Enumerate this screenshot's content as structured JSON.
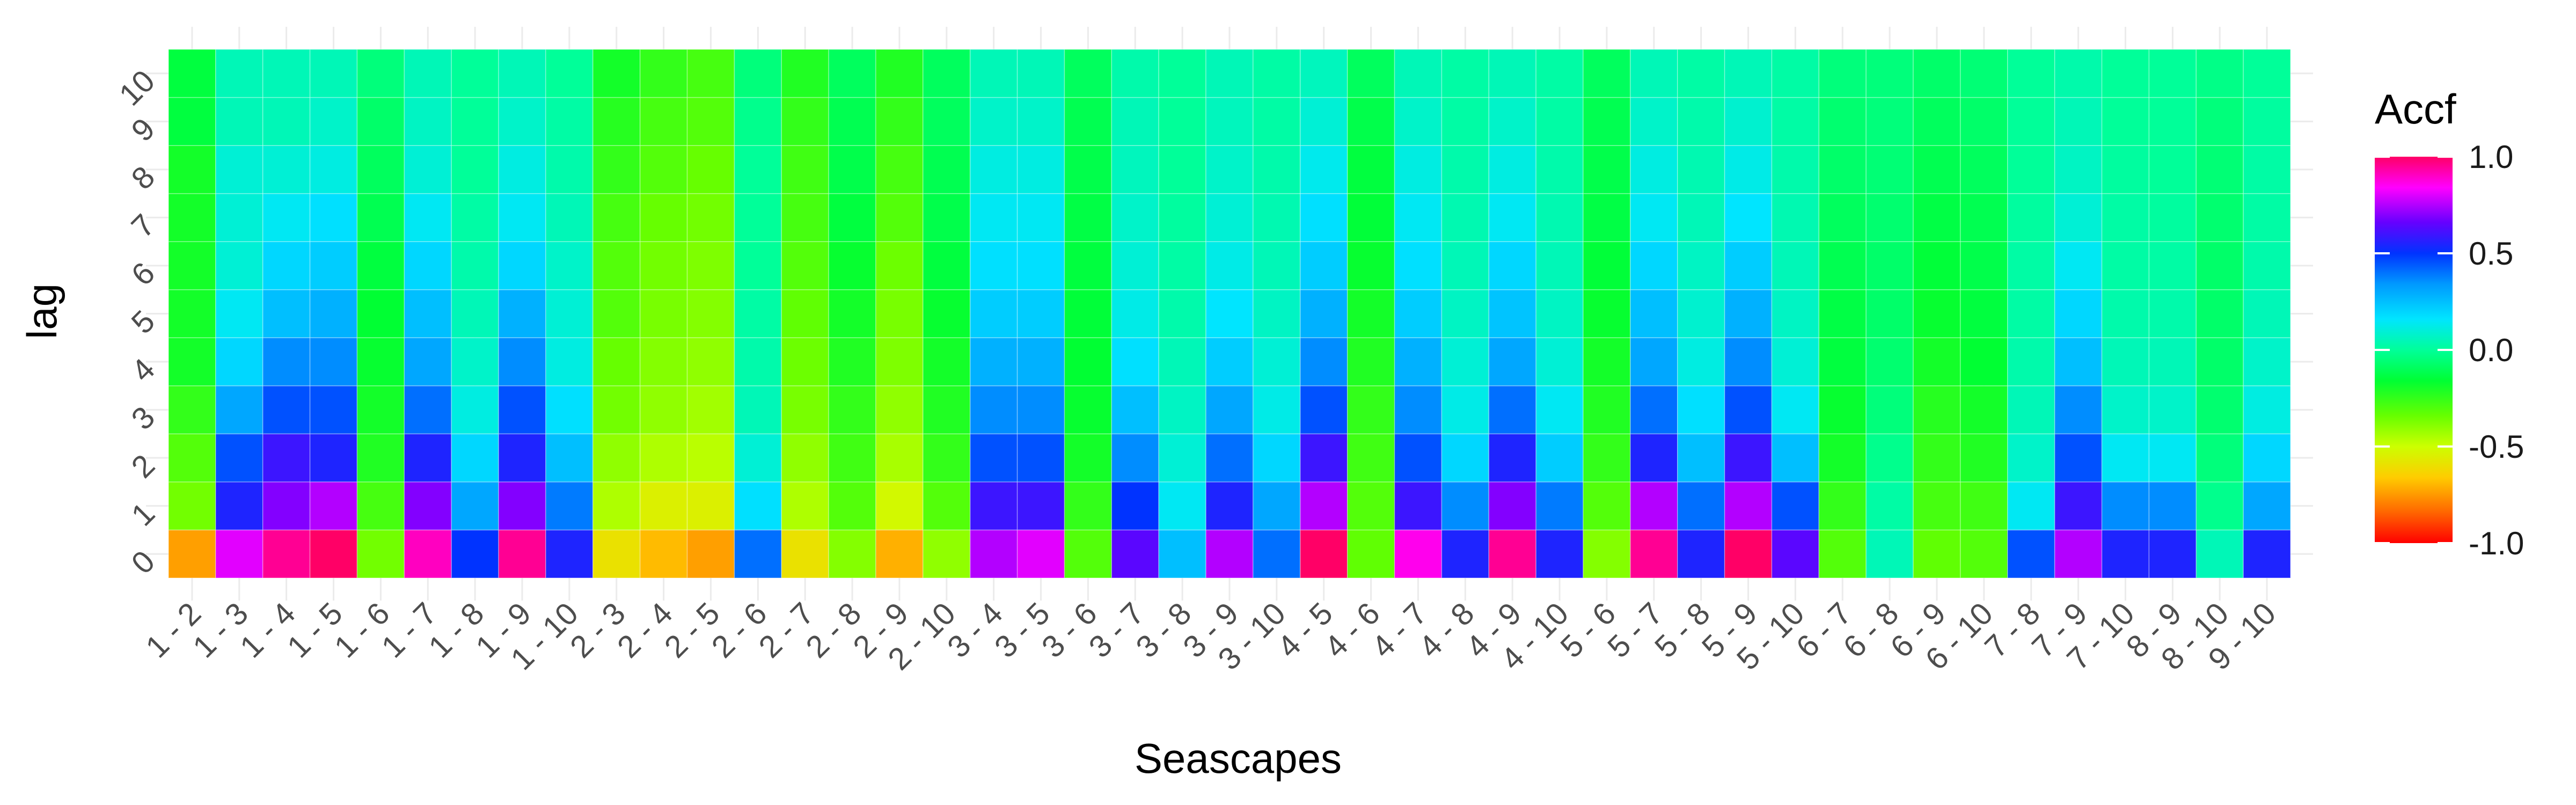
{
  "chart_data": {
    "type": "heatmap",
    "xlabel": "Seascapes",
    "ylabel": "lag",
    "legend_title": "Accf",
    "legend_placement": "right",
    "colorscale": "rainbow",
    "color_range": [
      -1.0,
      1.0
    ],
    "legend_ticks": [
      "1.0",
      "0.5",
      "0.0",
      "-0.5",
      "-1.0"
    ],
    "legend_tick_values": [
      1.0,
      0.5,
      0.0,
      -0.5,
      -1.0
    ],
    "x": [
      "1 - 2",
      "1 - 3",
      "1 - 4",
      "1 - 5",
      "1 - 6",
      "1 - 7",
      "1 - 8",
      "1 - 9",
      "1 - 10",
      "2 - 3",
      "2 - 4",
      "2 - 5",
      "2 - 6",
      "2 - 7",
      "2 - 8",
      "2 - 9",
      "2 - 10",
      "3 - 4",
      "3 - 5",
      "3 - 6",
      "3 - 7",
      "3 - 8",
      "3 - 9",
      "3 - 10",
      "4 - 5",
      "4 - 6",
      "4 - 7",
      "4 - 8",
      "4 - 9",
      "4 - 10",
      "5 - 6",
      "5 - 7",
      "5 - 8",
      "5 - 9",
      "5 - 10",
      "6 - 7",
      "6 - 8",
      "6 - 9",
      "6 - 10",
      "7 - 8",
      "7 - 9",
      "7 - 10",
      "8 - 9",
      "8 - 10",
      "9 - 10"
    ],
    "y": [
      "0",
      "1",
      "2",
      "3",
      "4",
      "5",
      "6",
      "7",
      "8",
      "9",
      "10"
    ],
    "values": [
      [
        -0.75,
        -0.35,
        -0.3,
        -0.25,
        -0.2,
        -0.2,
        -0.2,
        -0.2,
        -0.2,
        -0.15,
        -0.15
      ],
      [
        0.8,
        0.55,
        0.45,
        0.3,
        0.2,
        0.15,
        0.1,
        0.1,
        0.1,
        0.05,
        0.05
      ],
      [
        0.95,
        0.7,
        0.6,
        0.45,
        0.35,
        0.25,
        0.2,
        0.15,
        0.1,
        0.05,
        0.05
      ],
      [
        1.0,
        0.75,
        0.55,
        0.45,
        0.35,
        0.28,
        0.22,
        0.18,
        0.12,
        0.08,
        0.05
      ],
      [
        -0.35,
        -0.28,
        -0.22,
        -0.2,
        -0.18,
        -0.17,
        -0.15,
        -0.12,
        -0.1,
        -0.08,
        -0.05
      ],
      [
        0.9,
        0.7,
        0.55,
        0.4,
        0.3,
        0.25,
        0.2,
        0.15,
        0.1,
        0.07,
        0.05
      ],
      [
        0.5,
        0.3,
        0.2,
        0.12,
        0.08,
        0.05,
        0.03,
        0.02,
        0.0,
        0.0,
        0.0
      ],
      [
        0.95,
        0.7,
        0.55,
        0.45,
        0.35,
        0.28,
        0.2,
        0.15,
        0.12,
        0.08,
        0.05
      ],
      [
        0.55,
        0.38,
        0.25,
        0.18,
        0.12,
        0.1,
        0.08,
        0.05,
        0.03,
        0.02,
        0.0
      ],
      [
        -0.6,
        -0.45,
        -0.4,
        -0.35,
        -0.33,
        -0.3,
        -0.3,
        -0.28,
        -0.25,
        -0.23,
        -0.2
      ],
      [
        -0.7,
        -0.55,
        -0.45,
        -0.4,
        -0.38,
        -0.36,
        -0.35,
        -0.33,
        -0.3,
        -0.28,
        -0.25
      ],
      [
        -0.75,
        -0.55,
        -0.47,
        -0.43,
        -0.4,
        -0.38,
        -0.37,
        -0.35,
        -0.33,
        -0.3,
        -0.28
      ],
      [
        0.4,
        0.18,
        0.1,
        0.05,
        0.03,
        0.02,
        0.0,
        0.0,
        0.0,
        -0.02,
        -0.05
      ],
      [
        -0.6,
        -0.45,
        -0.4,
        -0.36,
        -0.34,
        -0.32,
        -0.3,
        -0.28,
        -0.27,
        -0.25,
        -0.22
      ],
      [
        -0.38,
        -0.3,
        -0.27,
        -0.25,
        -0.22,
        -0.2,
        -0.18,
        -0.15,
        -0.13,
        -0.12,
        -0.1
      ],
      [
        -0.72,
        -0.52,
        -0.44,
        -0.4,
        -0.37,
        -0.36,
        -0.34,
        -0.3,
        -0.28,
        -0.25,
        -0.22
      ],
      [
        -0.4,
        -0.3,
        -0.25,
        -0.22,
        -0.2,
        -0.18,
        -0.15,
        -0.13,
        -0.12,
        -0.1,
        -0.1
      ],
      [
        0.75,
        0.6,
        0.45,
        0.35,
        0.28,
        0.22,
        0.18,
        0.15,
        0.12,
        0.08,
        0.05
      ],
      [
        0.8,
        0.6,
        0.45,
        0.35,
        0.28,
        0.22,
        0.18,
        0.15,
        0.12,
        0.08,
        0.05
      ],
      [
        -0.3,
        -0.25,
        -0.2,
        -0.18,
        -0.17,
        -0.16,
        -0.15,
        -0.14,
        -0.13,
        -0.12,
        -0.1
      ],
      [
        0.65,
        0.5,
        0.35,
        0.25,
        0.18,
        0.13,
        0.1,
        0.08,
        0.06,
        0.05,
        0.03
      ],
      [
        0.25,
        0.15,
        0.1,
        0.07,
        0.05,
        0.03,
        0.02,
        0.01,
        0.0,
        0.0,
        0.0
      ],
      [
        0.75,
        0.55,
        0.4,
        0.3,
        0.22,
        0.17,
        0.13,
        0.1,
        0.08,
        0.06,
        0.05
      ],
      [
        0.4,
        0.3,
        0.2,
        0.13,
        0.1,
        0.07,
        0.05,
        0.04,
        0.03,
        0.02,
        0.02
      ],
      [
        1.0,
        0.75,
        0.6,
        0.45,
        0.35,
        0.28,
        0.22,
        0.18,
        0.14,
        0.1,
        0.06
      ],
      [
        -0.32,
        -0.3,
        -0.27,
        -0.25,
        -0.22,
        -0.2,
        -0.18,
        -0.16,
        -0.15,
        -0.13,
        -0.1
      ],
      [
        0.85,
        0.6,
        0.45,
        0.35,
        0.28,
        0.22,
        0.18,
        0.15,
        0.12,
        0.08,
        0.05
      ],
      [
        0.55,
        0.35,
        0.2,
        0.13,
        0.1,
        0.07,
        0.05,
        0.04,
        0.03,
        0.02,
        0.02
      ],
      [
        0.95,
        0.7,
        0.55,
        0.4,
        0.3,
        0.24,
        0.2,
        0.15,
        0.12,
        0.08,
        0.05
      ],
      [
        0.55,
        0.38,
        0.22,
        0.15,
        0.1,
        0.07,
        0.05,
        0.04,
        0.03,
        0.02,
        0.02
      ],
      [
        -0.38,
        -0.3,
        -0.25,
        -0.22,
        -0.2,
        -0.18,
        -0.16,
        -0.14,
        -0.13,
        -0.12,
        -0.1
      ],
      [
        0.95,
        0.75,
        0.55,
        0.4,
        0.3,
        0.25,
        0.2,
        0.15,
        0.12,
        0.08,
        0.05
      ],
      [
        0.55,
        0.4,
        0.25,
        0.18,
        0.12,
        0.09,
        0.07,
        0.05,
        0.04,
        0.03,
        0.02
      ],
      [
        1.0,
        0.75,
        0.6,
        0.45,
        0.35,
        0.28,
        0.22,
        0.17,
        0.13,
        0.09,
        0.05
      ],
      [
        0.65,
        0.45,
        0.25,
        0.15,
        0.1,
        0.07,
        0.05,
        0.04,
        0.03,
        0.02,
        0.02
      ],
      [
        -0.3,
        -0.25,
        -0.2,
        -0.18,
        -0.15,
        -0.14,
        -0.12,
        -0.1,
        -0.08,
        -0.07,
        -0.05
      ],
      [
        0.05,
        0.02,
        -0.02,
        -0.05,
        -0.07,
        -0.08,
        -0.08,
        -0.07,
        -0.06,
        -0.05,
        -0.05
      ],
      [
        -0.32,
        -0.28,
        -0.25,
        -0.23,
        -0.2,
        -0.18,
        -0.16,
        -0.14,
        -0.12,
        -0.1,
        -0.08
      ],
      [
        -0.3,
        -0.27,
        -0.22,
        -0.2,
        -0.17,
        -0.15,
        -0.13,
        -0.12,
        -0.1,
        -0.08,
        -0.06
      ],
      [
        0.45,
        0.15,
        0.08,
        0.05,
        0.03,
        0.02,
        0.02,
        0.01,
        0.0,
        0.0,
        0.0
      ],
      [
        0.75,
        0.6,
        0.45,
        0.35,
        0.25,
        0.2,
        0.15,
        0.1,
        0.07,
        0.05,
        0.03
      ],
      [
        0.55,
        0.35,
        0.15,
        0.08,
        0.05,
        0.03,
        0.02,
        0.02,
        0.01,
        0.0,
        0.0
      ],
      [
        0.55,
        0.35,
        0.15,
        0.08,
        0.05,
        0.03,
        0.02,
        0.01,
        0.0,
        0.0,
        0.0
      ],
      [
        0.05,
        -0.02,
        -0.05,
        -0.07,
        -0.08,
        -0.08,
        -0.08,
        -0.07,
        -0.06,
        -0.05,
        -0.03
      ],
      [
        0.55,
        0.3,
        0.2,
        0.12,
        0.08,
        0.05,
        0.03,
        0.02,
        0.02,
        0.01,
        0.0
      ]
    ],
    "values_layout": "values[i][j] = Accf for seascape x[i] at lag y[j]"
  }
}
